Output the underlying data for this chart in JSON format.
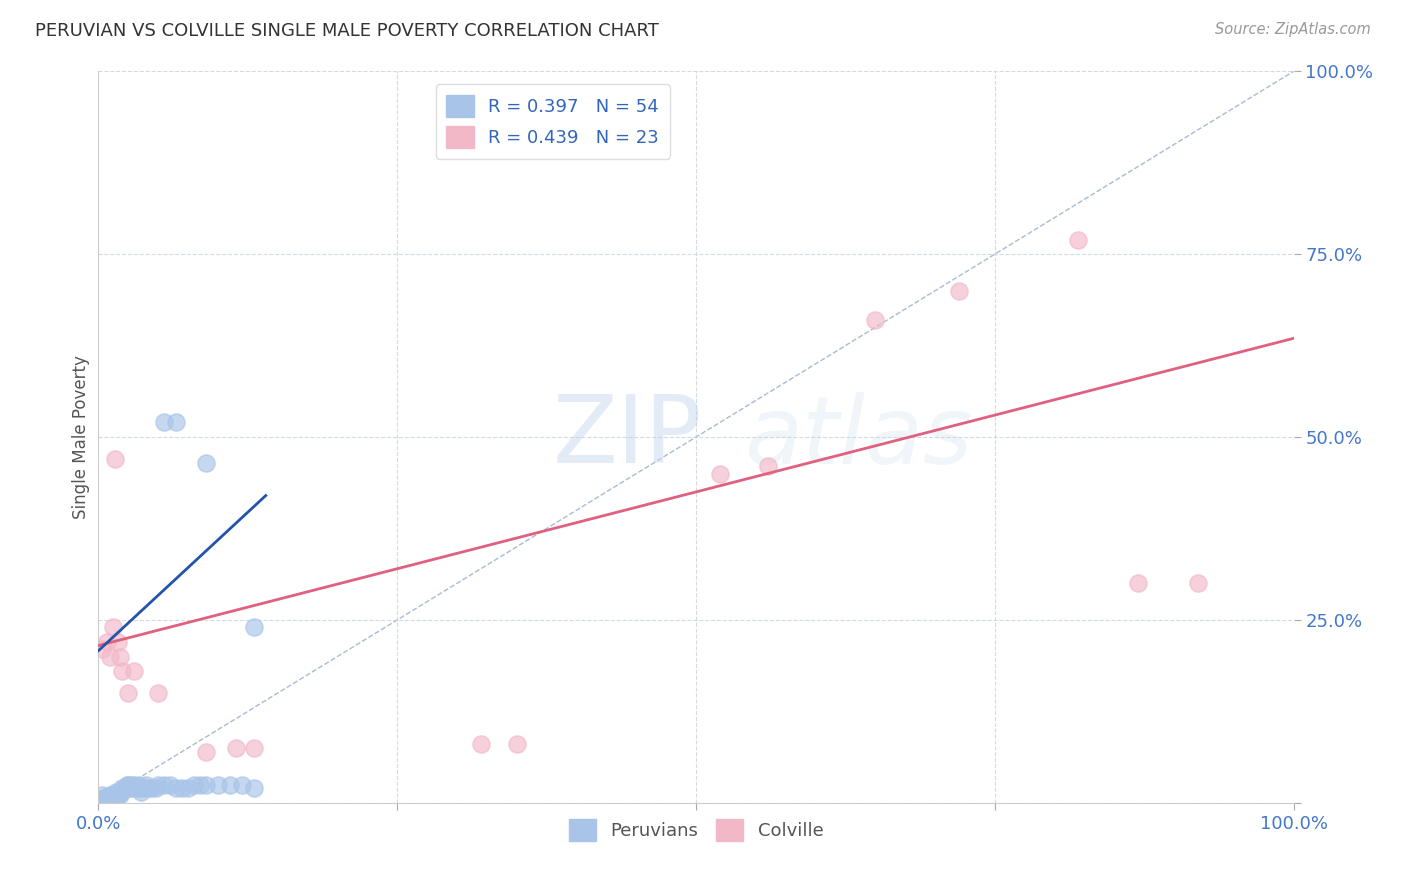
{
  "title": "PERUVIAN VS COLVILLE SINGLE MALE POVERTY CORRELATION CHART",
  "source": "Source: ZipAtlas.com",
  "ylabel": "Single Male Poverty",
  "legend_blue_label": "R = 0.397   N = 54",
  "legend_pink_label": "R = 0.439   N = 23",
  "legend_bottom_blue": "Peruvians",
  "legend_bottom_pink": "Colville",
  "blue_color": "#a8c4e8",
  "pink_color": "#f2b8c8",
  "blue_line_color": "#2255aa",
  "pink_line_color": "#e06080",
  "diagonal_color": "#aabbd0",
  "watermark_zip": "ZIP",
  "watermark_atlas": "atlas",
  "blue_scatter": [
    [
      0.002,
      0.005
    ],
    [
      0.003,
      0.01
    ],
    [
      0.004,
      0.005
    ],
    [
      0.005,
      0.005
    ],
    [
      0.006,
      0.008
    ],
    [
      0.007,
      0.005
    ],
    [
      0.008,
      0.005
    ],
    [
      0.009,
      0.005
    ],
    [
      0.01,
      0.01
    ],
    [
      0.011,
      0.01
    ],
    [
      0.012,
      0.01
    ],
    [
      0.013,
      0.005
    ],
    [
      0.014,
      0.01
    ],
    [
      0.015,
      0.015
    ],
    [
      0.016,
      0.01
    ],
    [
      0.017,
      0.015
    ],
    [
      0.018,
      0.01
    ],
    [
      0.019,
      0.015
    ],
    [
      0.02,
      0.02
    ],
    [
      0.021,
      0.02
    ],
    [
      0.022,
      0.02
    ],
    [
      0.023,
      0.02
    ],
    [
      0.024,
      0.025
    ],
    [
      0.025,
      0.025
    ],
    [
      0.026,
      0.02
    ],
    [
      0.027,
      0.025
    ],
    [
      0.028,
      0.02
    ],
    [
      0.03,
      0.025
    ],
    [
      0.032,
      0.02
    ],
    [
      0.034,
      0.025
    ],
    [
      0.035,
      0.02
    ],
    [
      0.036,
      0.015
    ],
    [
      0.038,
      0.02
    ],
    [
      0.04,
      0.025
    ],
    [
      0.042,
      0.02
    ],
    [
      0.045,
      0.02
    ],
    [
      0.048,
      0.02
    ],
    [
      0.05,
      0.025
    ],
    [
      0.055,
      0.025
    ],
    [
      0.06,
      0.025
    ],
    [
      0.065,
      0.02
    ],
    [
      0.07,
      0.02
    ],
    [
      0.075,
      0.02
    ],
    [
      0.08,
      0.025
    ],
    [
      0.085,
      0.025
    ],
    [
      0.09,
      0.025
    ],
    [
      0.1,
      0.025
    ],
    [
      0.11,
      0.025
    ],
    [
      0.12,
      0.025
    ],
    [
      0.13,
      0.02
    ],
    [
      0.055,
      0.52
    ],
    [
      0.065,
      0.52
    ],
    [
      0.09,
      0.465
    ],
    [
      0.13,
      0.24
    ]
  ],
  "pink_scatter": [
    [
      0.003,
      0.21
    ],
    [
      0.007,
      0.22
    ],
    [
      0.01,
      0.2
    ],
    [
      0.012,
      0.24
    ],
    [
      0.014,
      0.47
    ],
    [
      0.016,
      0.22
    ],
    [
      0.018,
      0.2
    ],
    [
      0.02,
      0.18
    ],
    [
      0.025,
      0.15
    ],
    [
      0.03,
      0.18
    ],
    [
      0.05,
      0.15
    ],
    [
      0.09,
      0.07
    ],
    [
      0.115,
      0.075
    ],
    [
      0.13,
      0.075
    ],
    [
      0.32,
      0.08
    ],
    [
      0.35,
      0.08
    ],
    [
      0.52,
      0.45
    ],
    [
      0.56,
      0.46
    ],
    [
      0.65,
      0.66
    ],
    [
      0.72,
      0.7
    ],
    [
      0.82,
      0.77
    ],
    [
      0.87,
      0.3
    ],
    [
      0.92,
      0.3
    ]
  ],
  "blue_line": [
    [
      0.0,
      0.208
    ],
    [
      0.14,
      0.42
    ]
  ],
  "pink_line": [
    [
      0.0,
      0.215
    ],
    [
      1.0,
      0.635
    ]
  ],
  "diagonal_line": [
    [
      0.0,
      0.0
    ],
    [
      1.0,
      1.0
    ]
  ],
  "xlim": [
    0.0,
    1.0
  ],
  "ylim": [
    0.0,
    1.0
  ]
}
